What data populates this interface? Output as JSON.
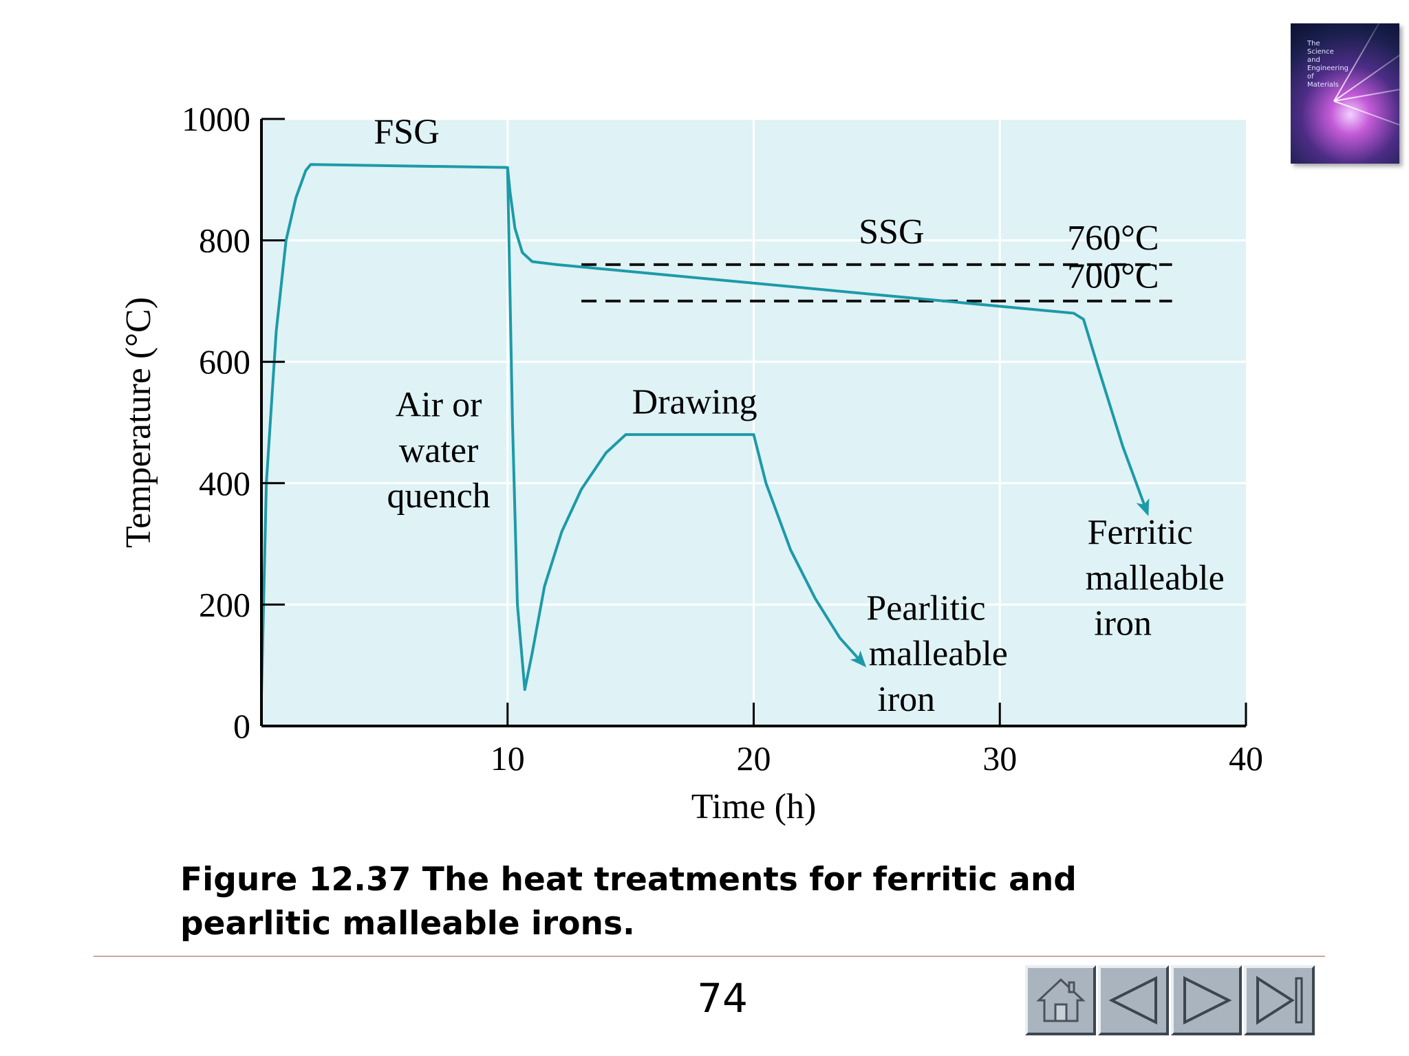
{
  "chart_data": {
    "type": "line",
    "xlabel": "Time (h)",
    "ylabel": "Temperature (°C)",
    "xlim": [
      0,
      40
    ],
    "ylim": [
      0,
      1000
    ],
    "x_ticks": [
      10,
      20,
      30,
      40
    ],
    "y_ticks": [
      0,
      200,
      400,
      600,
      800,
      1000
    ],
    "grid": true,
    "series": [
      {
        "name": "",
        "x": [
          0,
          0.2,
          0.6,
          1.0,
          1.4,
          1.8,
          2.0,
          10.0,
          10.1,
          10.3,
          10.6,
          11.0,
          12.0,
          33.0,
          33.4,
          34.0,
          35.0,
          36.0
        ],
        "y": [
          50,
          400,
          650,
          800,
          870,
          915,
          925,
          920,
          880,
          820,
          780,
          765,
          760,
          680,
          670,
          590,
          460,
          350
        ]
      },
      {
        "name": "",
        "x": [
          10.0,
          10.2,
          10.4,
          10.7,
          11.0,
          11.5,
          12.2,
          13.0,
          14.0,
          14.8,
          20.0,
          20.5,
          21.5,
          22.5,
          23.5,
          24.5
        ],
        "y": [
          920,
          500,
          200,
          60,
          120,
          230,
          320,
          390,
          450,
          480,
          480,
          400,
          290,
          210,
          145,
          100
        ]
      }
    ],
    "reference_lines": [
      {
        "y": 760,
        "x_start": 13,
        "x_end": 37,
        "label": "760°C",
        "style": "dashed"
      },
      {
        "y": 700,
        "x_start": 13,
        "x_end": 37,
        "label": "700°C",
        "style": "dashed"
      }
    ],
    "annotations": [
      {
        "text": "FSG",
        "x": 5.9,
        "y": 960
      },
      {
        "text": "SSG",
        "x": 25.6,
        "y": 795
      },
      {
        "text": "760°C",
        "x": 34.6,
        "y": 785
      },
      {
        "text": "700°C",
        "x": 34.6,
        "y": 722
      },
      {
        "text": "Air or",
        "x": 7.2,
        "y": 510
      },
      {
        "text": "water",
        "x": 7.2,
        "y": 435
      },
      {
        "text": "quench",
        "x": 7.2,
        "y": 360
      },
      {
        "text": "Drawing",
        "x": 17.6,
        "y": 515
      },
      {
        "text": "Pearlitic",
        "x": 27.0,
        "y": 175
      },
      {
        "text": "malleable",
        "x": 27.5,
        "y": 100
      },
      {
        "text": "iron",
        "x": 26.2,
        "y": 25
      },
      {
        "text": "Ferritic",
        "x": 35.7,
        "y": 300
      },
      {
        "text": "malleable",
        "x": 36.3,
        "y": 225
      },
      {
        "text": "iron",
        "x": 35.0,
        "y": 150
      }
    ],
    "line_color": "#1d9aa8",
    "plot_background": "#dff2f5"
  },
  "caption": {
    "line1": "Figure 12.37 The heat treatments for ferritic and",
    "line2": "pearlitic malleable irons."
  },
  "page_number": "74",
  "nav": {
    "home": "home-icon",
    "prev": "previous-icon",
    "next": "next-icon",
    "last": "last-icon"
  },
  "book_cover": {
    "title": "The\nScience\nand\nEngineering\nof\nMaterials"
  }
}
